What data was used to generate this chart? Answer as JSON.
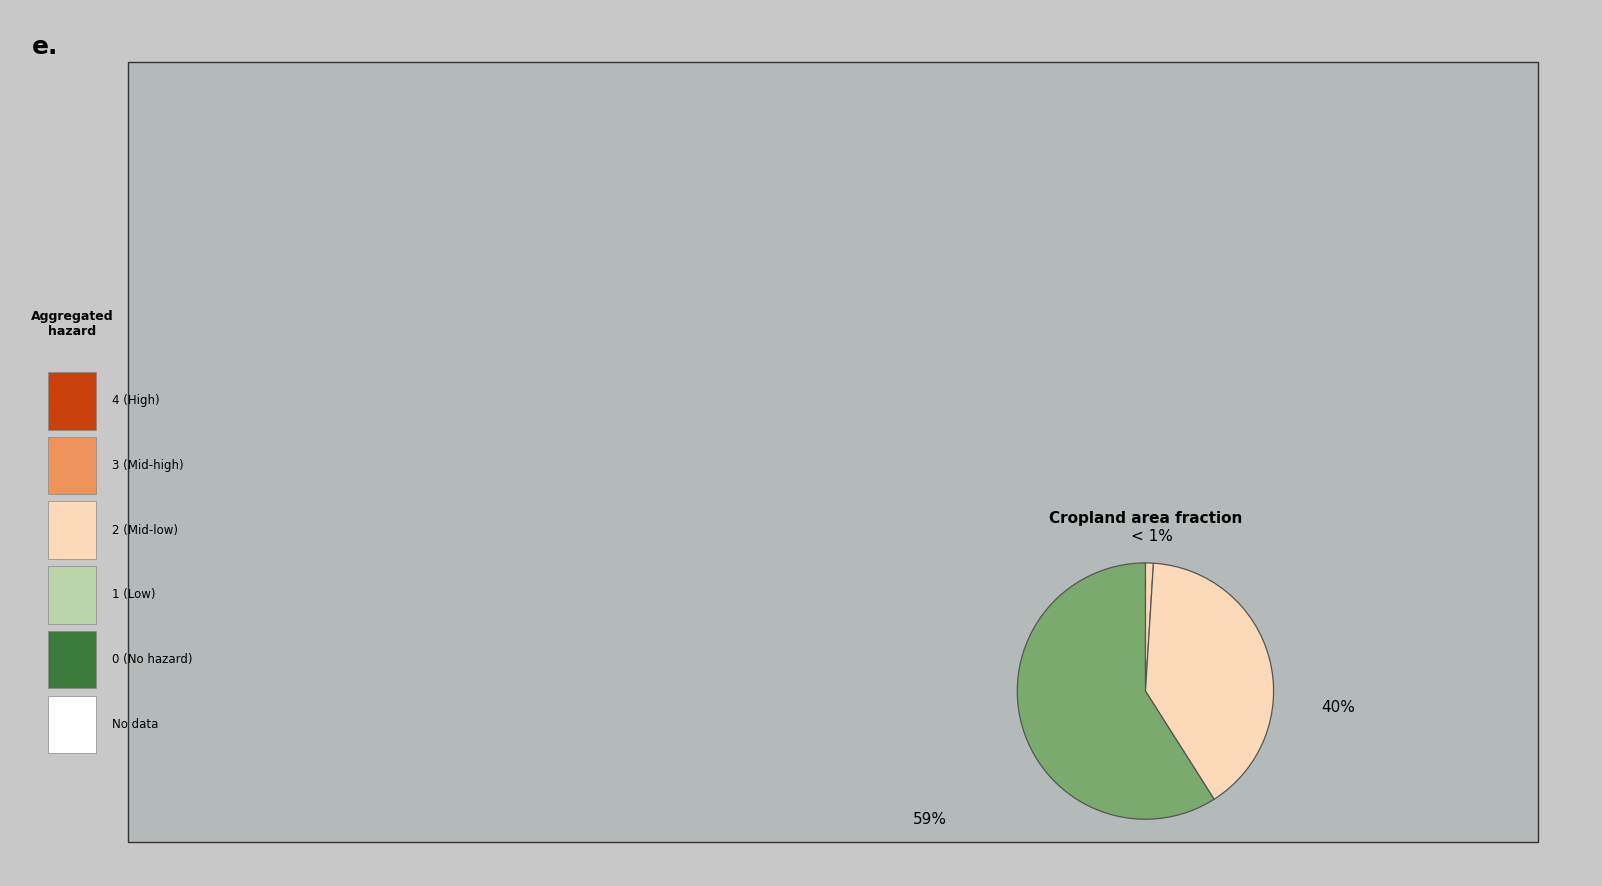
{
  "title_label": "e.",
  "background_color": "#c8c8c8",
  "ocean_color": "#b4baba",
  "land_base_color": "#e8e4e0",
  "legend_title": "Aggregated\nhazard",
  "legend_entries": [
    {
      "label": "4 (High)",
      "color": "#c8400a"
    },
    {
      "label": "3 (Mid-high)",
      "color": "#f0935a"
    },
    {
      "label": "2 (Mid-low)",
      "color": "#fcd9b8"
    },
    {
      "label": "1 (Low)",
      "color": "#b8d4a8"
    },
    {
      "label": "0 (No hazard)",
      "color": "#3a7a3a"
    },
    {
      "label": "No data",
      "color": "#ffffff"
    }
  ],
  "pie_title": "Cropland area fraction",
  "pie_values": [
    1,
    40,
    59
  ],
  "pie_labels": [
    "< 1%",
    "40%",
    "59%"
  ],
  "pie_colors": [
    "#fcd9b8",
    "#fcd9b8",
    "#7aaa6e"
  ],
  "colorbar_colors": [
    "#c8400a",
    "#f0935a",
    "#fcd9b8",
    "#b8d4a8",
    "#3a7a3a",
    "#ffffff"
  ]
}
